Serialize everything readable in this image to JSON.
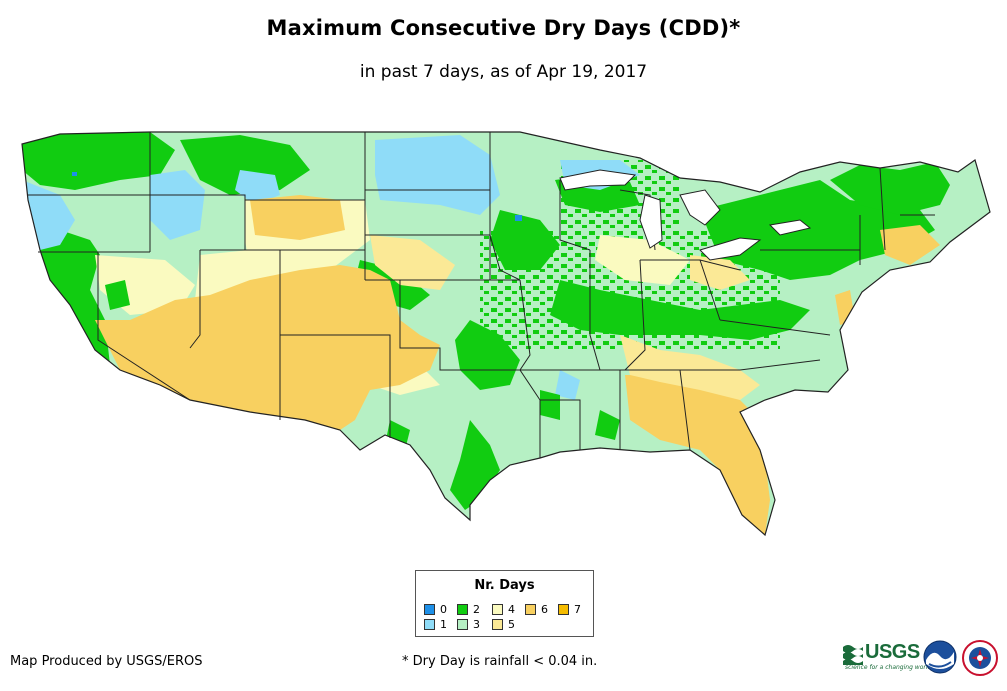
{
  "header": {
    "title": "Maximum Consecutive Dry Days (CDD)*",
    "subtitle": "in past 7 days, as of Apr 19, 2017"
  },
  "legend": {
    "title": "Nr. Days",
    "items": [
      {
        "label": "0",
        "color": "#1e90e8"
      },
      {
        "label": "1",
        "color": "#8fdcf8"
      },
      {
        "label": "2",
        "color": "#11cc11"
      },
      {
        "label": "3",
        "color": "#b6f0c4"
      },
      {
        "label": "4",
        "color": "#fafac0"
      },
      {
        "label": "5",
        "color": "#fbe996"
      },
      {
        "label": "6",
        "color": "#f8d060"
      },
      {
        "label": "7",
        "color": "#f5bc00"
      }
    ]
  },
  "footer": {
    "credit": "Map Produced by USGS/EROS",
    "footnote": "* Dry Day is rainfall < 0.04 in."
  },
  "logos": {
    "usgs_text": "USGS",
    "usgs_tagline": "science for a changing world"
  }
}
